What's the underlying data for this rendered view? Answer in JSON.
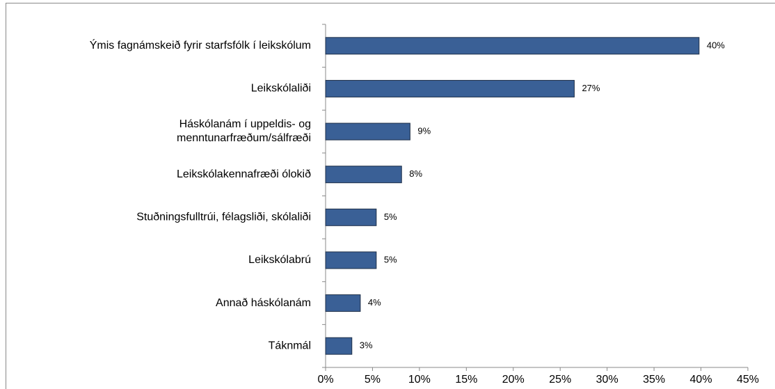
{
  "chart_data": {
    "type": "bar",
    "orientation": "horizontal",
    "categories": [
      "Ýmis fagnámskeið fyrir starfsfólk í leikskólum",
      "Leikskólaliði",
      "Háskólanám í uppeldis- og\nmenntunarfræðum/sálfræði",
      "Leikskólakennafræði ólokið",
      "Stuðningsfulltrúi, félagsliði, skólaliði",
      "Leikskólabrú",
      "Annað háskólanám",
      "Táknmál"
    ],
    "values": [
      39.8,
      26.5,
      9.0,
      8.1,
      5.4,
      5.4,
      3.7,
      2.8
    ],
    "value_labels": [
      "40%",
      "27%",
      "9%",
      "8%",
      "5%",
      "5%",
      "4%",
      "3%"
    ],
    "color": "#3a6096",
    "xlim": [
      0,
      45
    ],
    "xticks": [
      {
        "value": 0,
        "label": "0%"
      },
      {
        "value": 5,
        "label": "5%"
      },
      {
        "value": 10,
        "label": "10%"
      },
      {
        "value": 15,
        "label": "15%"
      },
      {
        "value": 20,
        "label": "20%"
      },
      {
        "value": 25,
        "label": "25%"
      },
      {
        "value": 30,
        "label": "30%"
      },
      {
        "value": 35,
        "label": "35%"
      },
      {
        "value": 40,
        "label": "40%"
      },
      {
        "value": 45,
        "label": "45%"
      }
    ],
    "grid": false
  }
}
